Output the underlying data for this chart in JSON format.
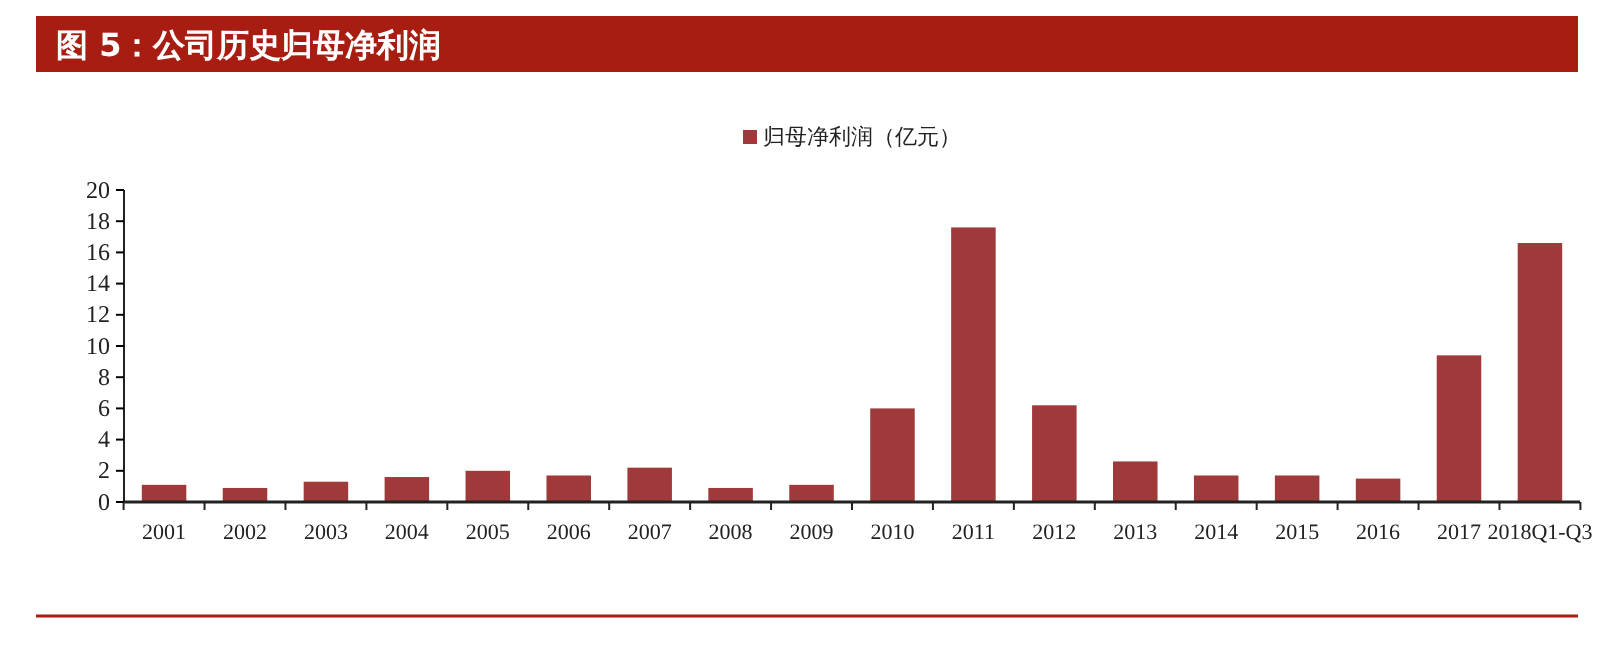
{
  "chart_data": {
    "type": "bar",
    "title": "图 5：公司历史归母净利润",
    "categories": [
      "2001",
      "2002",
      "2003",
      "2004",
      "2005",
      "2006",
      "2007",
      "2008",
      "2009",
      "2010",
      "2011",
      "2012",
      "2013",
      "2014",
      "2015",
      "2016",
      "2017",
      "2018Q1-Q3"
    ],
    "series": [
      {
        "name": "归母净利润（亿元）",
        "color": "#a0393a",
        "values": [
          1.1,
          0.9,
          1.3,
          1.6,
          2.0,
          1.7,
          2.2,
          0.9,
          1.1,
          6.0,
          17.6,
          6.2,
          2.6,
          1.7,
          1.7,
          1.5,
          9.4,
          16.6
        ]
      }
    ],
    "ylim": [
      0,
      20
    ],
    "yticks": [
      0,
      2,
      4,
      6,
      8,
      10,
      12,
      14,
      16,
      18,
      20
    ],
    "grid": false,
    "legend": "top"
  }
}
